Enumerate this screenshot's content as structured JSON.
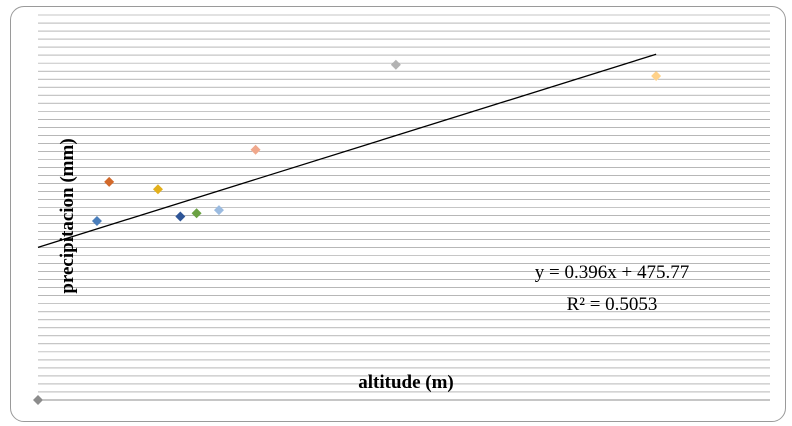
{
  "chart_data": {
    "type": "scatter",
    "title": "",
    "xlabel": "altitude (m)",
    "ylabel": "precipitacion (mm)",
    "xlim": [
      0,
      1800
    ],
    "ylim": [
      0,
      1200
    ],
    "grid": true,
    "trendline": {
      "type": "linear",
      "slope": 0.396,
      "intercept": 475.77,
      "equation_label": "y = 0.396x + 475.77",
      "r2_label": "R² = 0.5053"
    },
    "points": [
      {
        "x": 145,
        "y": 558,
        "color": "#4a7ebb"
      },
      {
        "x": 175,
        "y": 680,
        "color": "#d2692a"
      },
      {
        "x": 295,
        "y": 657,
        "color": "#e3b01c"
      },
      {
        "x": 350,
        "y": 572,
        "color": "#2e5597"
      },
      {
        "x": 390,
        "y": 582,
        "color": "#6aa142"
      },
      {
        "x": 445,
        "y": 592,
        "color": "#9bbbe0"
      },
      {
        "x": 535,
        "y": 780,
        "color": "#f0a88c"
      },
      {
        "x": 880,
        "y": 1045,
        "color": "#b3b3b3"
      },
      {
        "x": 1520,
        "y": 1010,
        "color": "#ffd28a"
      },
      {
        "x": 0,
        "y": 0,
        "color": "#8c8c8c"
      }
    ]
  }
}
